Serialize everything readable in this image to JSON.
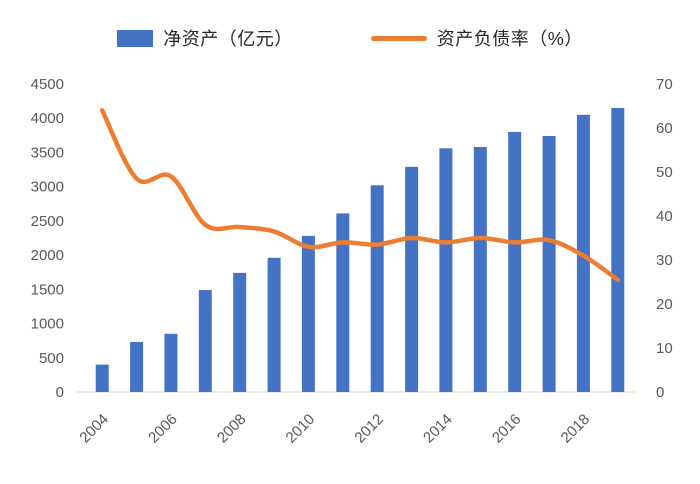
{
  "chart_data": {
    "type": "bar+line combo",
    "categories": [
      2004,
      2005,
      2006,
      2007,
      2008,
      2009,
      2010,
      2011,
      2012,
      2013,
      2014,
      2015,
      2016,
      2017,
      2018,
      2019
    ],
    "x_tick_labels": [
      "2004",
      "2006",
      "2008",
      "2010",
      "2012",
      "2014",
      "2016",
      "2018"
    ],
    "series": [
      {
        "name": "净资产（亿元）",
        "type": "bar",
        "axis": "left",
        "color": "#4472C4",
        "values": [
          400,
          730,
          850,
          1490,
          1740,
          1960,
          2280,
          2610,
          3020,
          3290,
          3560,
          3580,
          3800,
          3740,
          4050,
          4150
        ]
      },
      {
        "name": "资产负债率（%）",
        "type": "line",
        "axis": "right",
        "color": "#ED7D31",
        "values": [
          64,
          48.5,
          49,
          38,
          37.5,
          36.5,
          33,
          34,
          33.5,
          35,
          34,
          35,
          34,
          34.5,
          31,
          25.5
        ]
      }
    ],
    "left_axis": {
      "min": 0,
      "max": 4500,
      "step": 500
    },
    "right_axis": {
      "min": 0,
      "max": 70,
      "step": 10
    },
    "grid": "off",
    "legend_position": "top",
    "title": ""
  }
}
